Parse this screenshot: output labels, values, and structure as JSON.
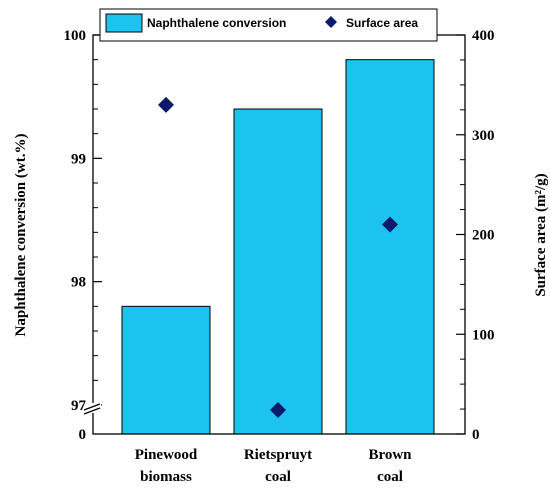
{
  "chart_data": {
    "type": "bar",
    "categories": [
      [
        "Pinewood",
        "biomass"
      ],
      [
        "Rietspruyt",
        "coal"
      ],
      [
        "Brown",
        "coal"
      ]
    ],
    "series": [
      {
        "name": "Naphthalene conversion",
        "type": "bar",
        "axis": "left",
        "values": [
          97.8,
          99.4,
          99.8
        ],
        "color": "#1cc3f0"
      },
      {
        "name": "Surface area",
        "type": "scatter",
        "axis": "right",
        "marker": "diamond",
        "values": [
          330,
          24,
          210
        ],
        "color": "#0b1a6b"
      }
    ],
    "ylabel": "Naphthalene conversion (wt.%)",
    "y2label": "Surface area (m²/g)",
    "ylim": [
      97,
      100
    ],
    "y_axis_break": true,
    "y_break_bottom_label": "0",
    "yticks": [
      97,
      98,
      99,
      100
    ],
    "y2lim": [
      0,
      400
    ],
    "y2ticks": [
      0,
      100,
      200,
      300,
      400
    ],
    "legend_position": "top",
    "grid": false
  }
}
